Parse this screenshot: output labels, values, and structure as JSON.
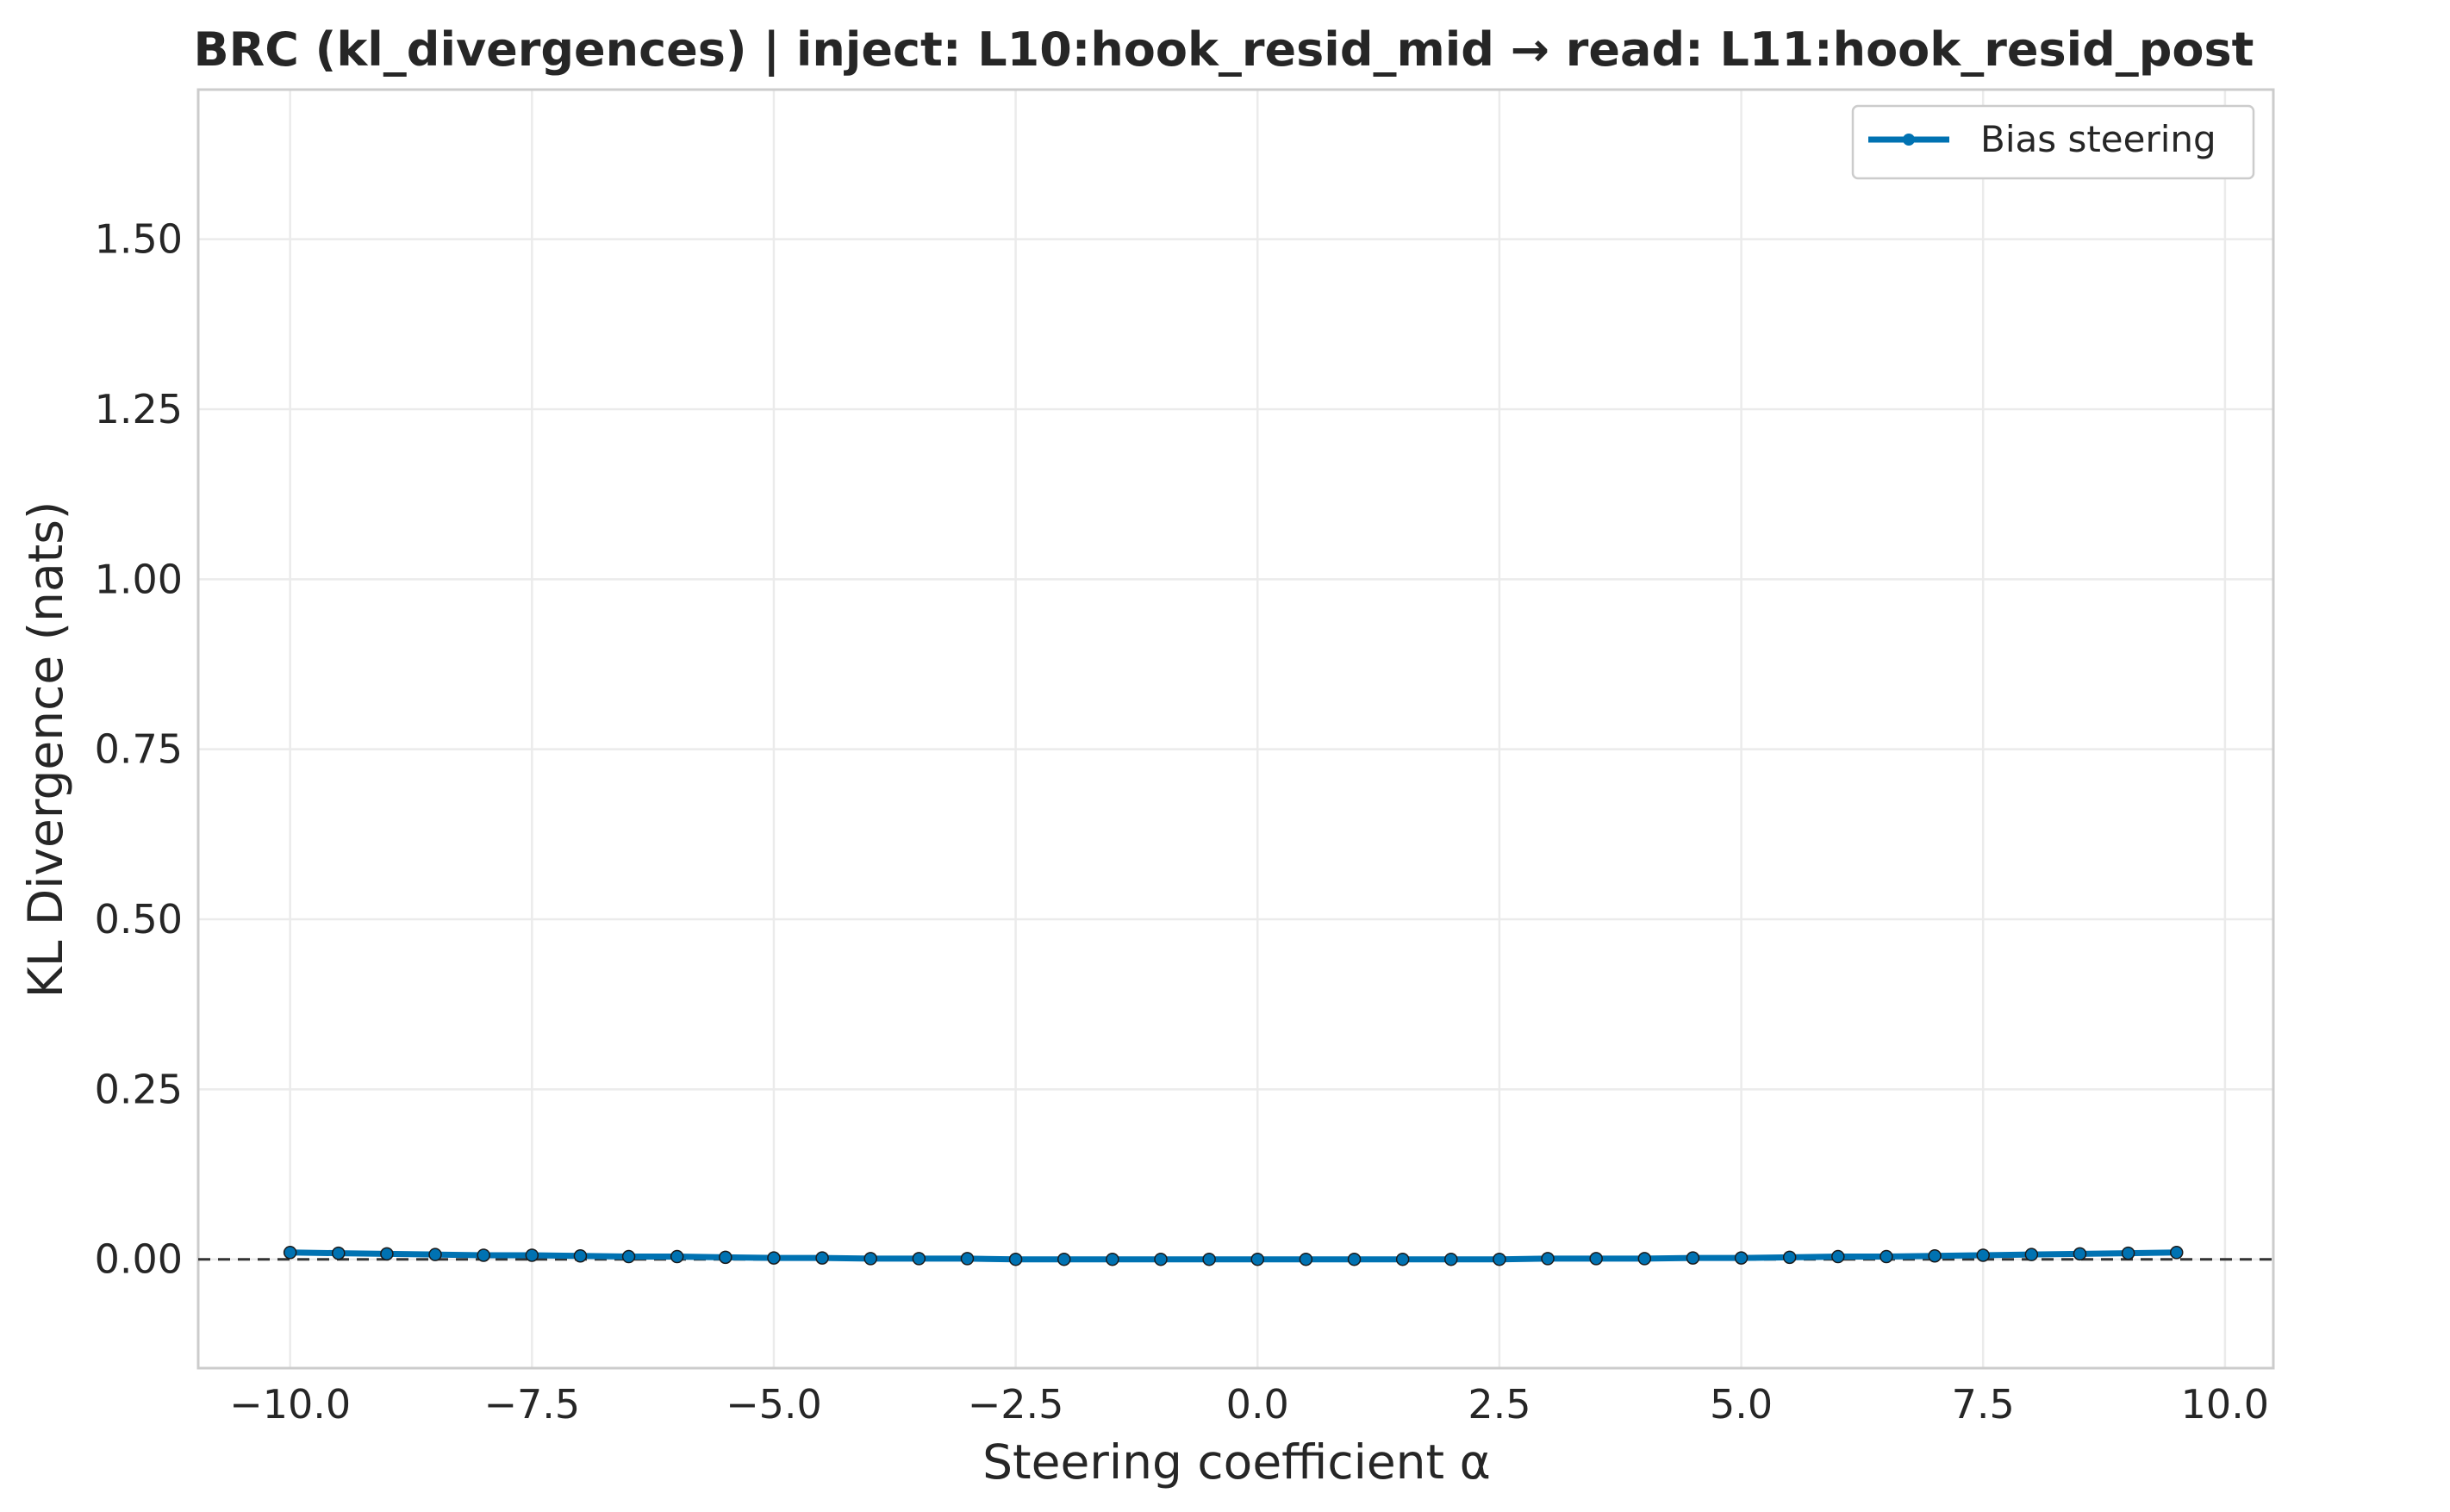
{
  "chart_data": {
    "type": "line",
    "title": "BRC (kl_divergences) | inject: L10:hook_resid_mid → read: L11:hook_resid_post",
    "xlabel": "Steering coefficient α",
    "ylabel": "KL Divergence (nats)",
    "xlim": [
      -10.95,
      10.5
    ],
    "ylim": [
      -0.16,
      1.72
    ],
    "xticks": [
      -10.0,
      -7.5,
      -5.0,
      -2.5,
      0.0,
      2.5,
      5.0,
      7.5,
      10.0
    ],
    "xtick_labels": [
      "−10.0",
      "−7.5",
      "−5.0",
      "−2.5",
      "0.0",
      "2.5",
      "5.0",
      "7.5",
      "10.0"
    ],
    "yticks": [
      0.0,
      0.25,
      0.5,
      0.75,
      1.0,
      1.25,
      1.5
    ],
    "ytick_labels": [
      "0.00",
      "0.25",
      "0.50",
      "0.75",
      "1.00",
      "1.25",
      "1.50"
    ],
    "grid": true,
    "legend_position": "top-right",
    "reference_line": {
      "y": 0.0,
      "style": "dashed",
      "color": "#333333"
    },
    "series": [
      {
        "name": "Bias steering",
        "color": "#0072B2",
        "x": [
          -10.0,
          -9.5,
          -9.0,
          -8.5,
          -8.0,
          -7.5,
          -7.0,
          -6.5,
          -6.0,
          -5.5,
          -5.0,
          -4.5,
          -4.0,
          -3.5,
          -3.0,
          -2.5,
          -2.0,
          -1.5,
          -1.0,
          -0.5,
          0.0,
          0.5,
          1.0,
          1.5,
          2.0,
          2.5,
          3.0,
          3.5,
          4.0,
          4.5,
          5.0,
          5.5,
          6.0,
          6.5,
          7.0,
          7.5,
          8.0,
          8.5,
          9.0,
          9.5
        ],
        "y": [
          0.01,
          0.009,
          0.008,
          0.007,
          0.006,
          0.006,
          0.005,
          0.004,
          0.004,
          0.003,
          0.002,
          0.002,
          0.001,
          0.001,
          0.001,
          0.0,
          0.0,
          0.0,
          0.0,
          0.0,
          0.0,
          0.0,
          0.0,
          0.0,
          0.0,
          0.0,
          0.001,
          0.001,
          0.001,
          0.002,
          0.002,
          0.003,
          0.004,
          0.004,
          0.005,
          0.006,
          0.007,
          0.008,
          0.009,
          0.01
        ]
      }
    ]
  }
}
